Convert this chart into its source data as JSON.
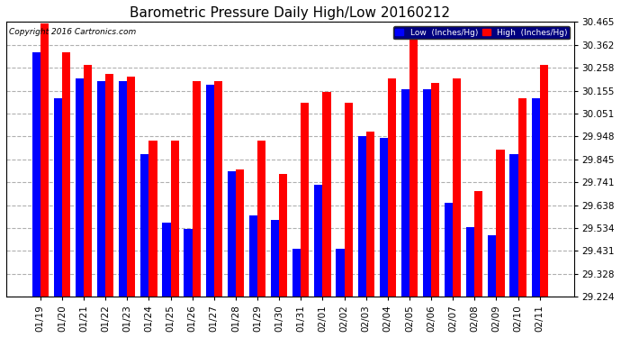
{
  "title": "Barometric Pressure Daily High/Low 20160212",
  "copyright": "Copyright 2016 Cartronics.com",
  "categories": [
    "01/19",
    "01/20",
    "01/21",
    "01/22",
    "01/23",
    "01/24",
    "01/25",
    "01/26",
    "01/27",
    "01/28",
    "01/29",
    "01/30",
    "01/31",
    "02/01",
    "02/02",
    "02/03",
    "02/04",
    "02/05",
    "02/06",
    "02/07",
    "02/08",
    "02/09",
    "02/10",
    "02/11"
  ],
  "high_values": [
    30.46,
    30.33,
    30.27,
    30.23,
    30.22,
    29.93,
    29.93,
    30.2,
    30.2,
    29.8,
    29.93,
    29.78,
    30.1,
    30.15,
    30.1,
    29.97,
    30.21,
    30.42,
    30.19,
    30.21,
    29.7,
    29.89,
    30.12,
    30.27
  ],
  "low_values": [
    30.33,
    30.12,
    30.21,
    30.2,
    30.2,
    29.87,
    29.56,
    29.53,
    30.18,
    29.79,
    29.59,
    29.57,
    29.44,
    29.73,
    29.44,
    29.95,
    29.94,
    30.16,
    30.16,
    29.65,
    29.54,
    29.5,
    29.87,
    30.12
  ],
  "low_color": "#0000ff",
  "high_color": "#ff0000",
  "bg_color": "#ffffff",
  "plot_bg_color": "#ffffff",
  "grid_color": "#b0b0b0",
  "ymin": 29.224,
  "ymax": 30.465,
  "yticks": [
    29.224,
    29.328,
    29.431,
    29.534,
    29.638,
    29.741,
    29.845,
    29.948,
    30.051,
    30.155,
    30.258,
    30.362,
    30.465
  ],
  "legend_low_label": "Low  (Inches/Hg)",
  "legend_high_label": "High  (Inches/Hg)",
  "title_fontsize": 11,
  "tick_fontsize": 7.5,
  "bar_width": 0.38
}
